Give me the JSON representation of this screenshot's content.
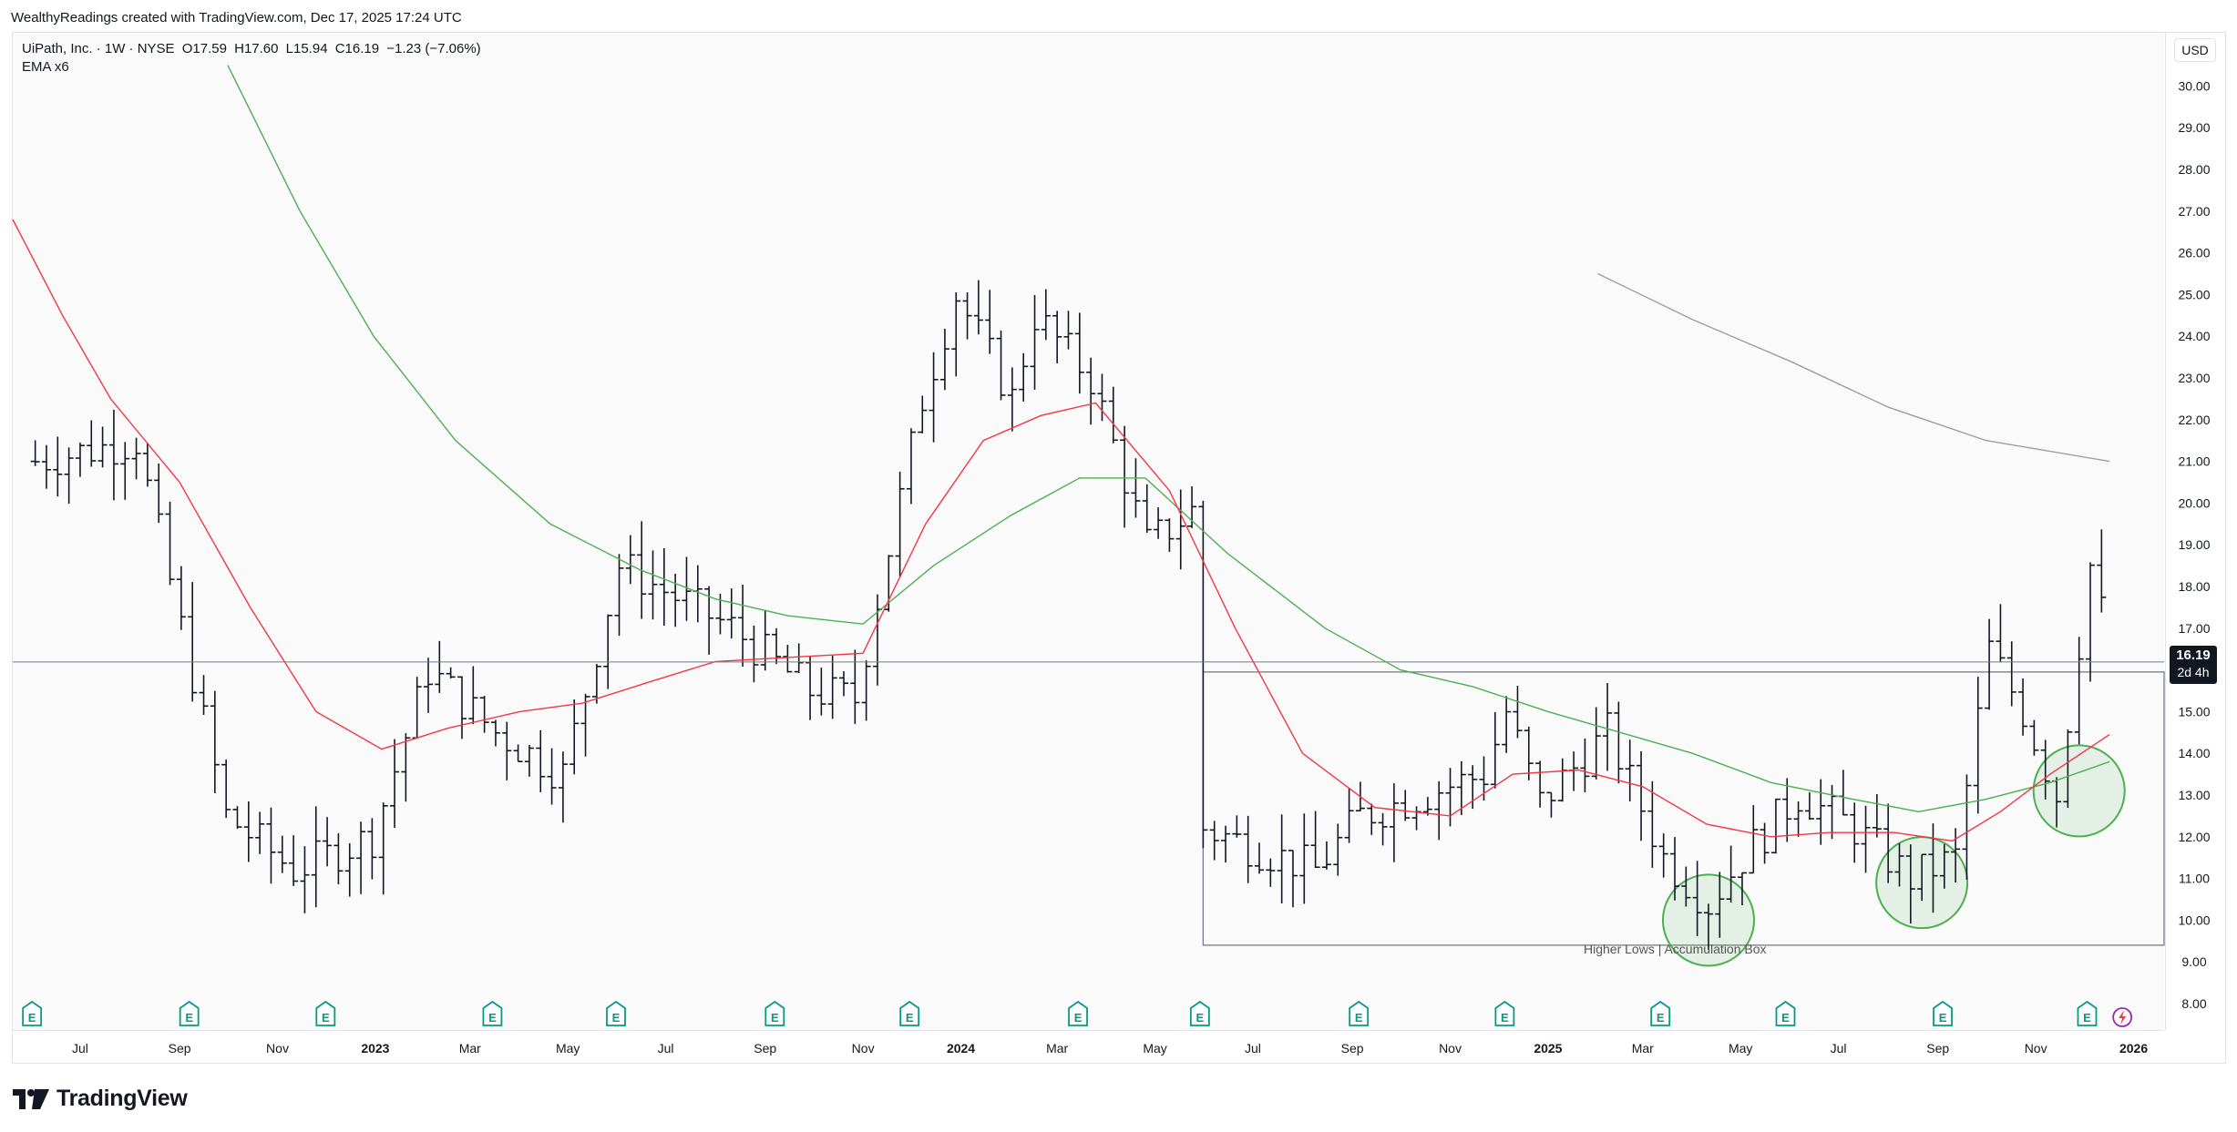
{
  "header": {
    "credit": "WealthyReadings created with TradingView.com, Dec 17, 2025 17:24 UTC"
  },
  "legend": {
    "symbol": "UiPath, Inc. · 1W · NYSE",
    "open": "O17.59",
    "high": "H17.60",
    "low": "L15.94",
    "close": "C16.19",
    "change": "−1.23 (−7.06%)",
    "indicator": "EMA x6"
  },
  "currency": "USD",
  "price_tag": {
    "price": "16.19",
    "countdown": "2d 4h"
  },
  "annotation": "Higher Lows | Accumulation Box",
  "brand": "TradingView",
  "colors": {
    "ema_fast": "#f23645",
    "ema_slow": "#4caf50",
    "ema_long": "#9e9e9e",
    "bars": "#131722",
    "circle": "#4caf50",
    "box": "#787b86",
    "earnings": "#089981"
  },
  "chart_data": {
    "type": "ohlc",
    "title": "UiPath, Inc. · 1W · NYSE",
    "y_ticks": [
      "8.00",
      "9.00",
      "10.00",
      "11.00",
      "12.00",
      "13.00",
      "14.00",
      "15.00",
      "16.00",
      "17.00",
      "18.00",
      "19.00",
      "20.00",
      "21.00",
      "22.00",
      "23.00",
      "24.00",
      "25.00",
      "26.00",
      "27.00",
      "28.00",
      "29.00",
      "30.00"
    ],
    "ylim": [
      7.5,
      30.5
    ],
    "x_ticks": [
      {
        "label": "Jul",
        "date": "2022-07-01",
        "bold": false
      },
      {
        "label": "Sep",
        "date": "2022-09-01",
        "bold": false
      },
      {
        "label": "Nov",
        "date": "2022-11-01",
        "bold": false
      },
      {
        "label": "2023",
        "date": "2023-01-01",
        "bold": true
      },
      {
        "label": "Mar",
        "date": "2023-03-01",
        "bold": false
      },
      {
        "label": "May",
        "date": "2023-05-01",
        "bold": false
      },
      {
        "label": "Jul",
        "date": "2023-07-01",
        "bold": false
      },
      {
        "label": "Sep",
        "date": "2023-09-01",
        "bold": false
      },
      {
        "label": "Nov",
        "date": "2023-11-01",
        "bold": false
      },
      {
        "label": "2024",
        "date": "2024-01-01",
        "bold": true
      },
      {
        "label": "Mar",
        "date": "2024-03-01",
        "bold": false
      },
      {
        "label": "May",
        "date": "2024-05-01",
        "bold": false
      },
      {
        "label": "Jul",
        "date": "2024-07-01",
        "bold": false
      },
      {
        "label": "Sep",
        "date": "2024-09-01",
        "bold": false
      },
      {
        "label": "Nov",
        "date": "2024-11-01",
        "bold": false
      },
      {
        "label": "2025",
        "date": "2025-01-01",
        "bold": true
      },
      {
        "label": "Mar",
        "date": "2025-03-01",
        "bold": false
      },
      {
        "label": "May",
        "date": "2025-05-01",
        "bold": false
      },
      {
        "label": "Jul",
        "date": "2025-07-01",
        "bold": false
      },
      {
        "label": "Sep",
        "date": "2025-09-01",
        "bold": false
      },
      {
        "label": "Nov",
        "date": "2025-11-01",
        "bold": false
      },
      {
        "label": "2026",
        "date": "2026-01-01",
        "bold": true
      }
    ],
    "x_range": [
      "2022-05-20",
      "2026-01-20"
    ],
    "price_key_points": [
      {
        "date": "2022-06-03",
        "price": 21.0
      },
      {
        "date": "2022-08-05",
        "price": 21.5
      },
      {
        "date": "2022-09-30",
        "price": 12.5
      },
      {
        "date": "2022-11-11",
        "price": 11.2
      },
      {
        "date": "2022-12-30",
        "price": 12.0
      },
      {
        "date": "2023-02-03",
        "price": 16.0
      },
      {
        "date": "2023-03-17",
        "price": 14.5
      },
      {
        "date": "2023-04-28",
        "price": 13.5
      },
      {
        "date": "2023-06-02",
        "price": 18.5
      },
      {
        "date": "2023-08-11",
        "price": 17.0
      },
      {
        "date": "2023-09-29",
        "price": 15.5
      },
      {
        "date": "2023-10-27",
        "price": 15.3
      },
      {
        "date": "2023-12-08",
        "price": 22.5
      },
      {
        "date": "2023-12-29",
        "price": 25.0
      },
      {
        "date": "2024-02-02",
        "price": 22.5
      },
      {
        "date": "2024-02-16",
        "price": 24.5
      },
      {
        "date": "2024-03-22",
        "price": 23.0
      },
      {
        "date": "2024-04-26",
        "price": 19.0
      },
      {
        "date": "2024-05-24",
        "price": 19.8
      },
      {
        "date": "2024-05-31",
        "price": 12.2
      },
      {
        "date": "2024-08-09",
        "price": 11.2
      },
      {
        "date": "2024-09-06",
        "price": 12.5
      },
      {
        "date": "2024-11-22",
        "price": 13.5
      },
      {
        "date": "2024-12-06",
        "price": 15.0
      },
      {
        "date": "2024-12-27",
        "price": 12.8
      },
      {
        "date": "2025-02-07",
        "price": 14.5
      },
      {
        "date": "2025-03-14",
        "price": 11.5
      },
      {
        "date": "2025-04-11",
        "price": 10.4
      },
      {
        "date": "2025-05-02",
        "price": 11.5
      },
      {
        "date": "2025-06-06",
        "price": 13.0
      },
      {
        "date": "2025-07-11",
        "price": 12.2
      },
      {
        "date": "2025-08-15",
        "price": 11.0
      },
      {
        "date": "2025-09-12",
        "price": 11.5
      },
      {
        "date": "2025-10-03",
        "price": 16.5
      },
      {
        "date": "2025-10-24",
        "price": 15.0
      },
      {
        "date": "2025-11-14",
        "price": 13.0
      },
      {
        "date": "2025-12-05",
        "price": 18.5
      },
      {
        "date": "2025-12-12",
        "price": 17.4
      },
      {
        "date": "2025-12-17",
        "price": 16.19
      }
    ],
    "ema_red": [
      {
        "date": "2022-05-20",
        "price": 26.8
      },
      {
        "date": "2022-06-20",
        "price": 24.5
      },
      {
        "date": "2022-07-20",
        "price": 22.5
      },
      {
        "date": "2022-09-01",
        "price": 20.5
      },
      {
        "date": "2022-10-15",
        "price": 17.5
      },
      {
        "date": "2022-11-25",
        "price": 15.0
      },
      {
        "date": "2023-01-05",
        "price": 14.1
      },
      {
        "date": "2023-02-15",
        "price": 14.6
      },
      {
        "date": "2023-04-01",
        "price": 15.0
      },
      {
        "date": "2023-05-10",
        "price": 15.2
      },
      {
        "date": "2023-06-20",
        "price": 15.7
      },
      {
        "date": "2023-08-01",
        "price": 16.2
      },
      {
        "date": "2023-09-15",
        "price": 16.3
      },
      {
        "date": "2023-11-01",
        "price": 16.4
      },
      {
        "date": "2023-12-10",
        "price": 19.5
      },
      {
        "date": "2024-01-15",
        "price": 21.5
      },
      {
        "date": "2024-02-20",
        "price": 22.1
      },
      {
        "date": "2024-03-25",
        "price": 22.4
      },
      {
        "date": "2024-05-10",
        "price": 20.3
      },
      {
        "date": "2024-06-20",
        "price": 17.0
      },
      {
        "date": "2024-08-01",
        "price": 14.0
      },
      {
        "date": "2024-09-15",
        "price": 12.7
      },
      {
        "date": "2024-11-01",
        "price": 12.5
      },
      {
        "date": "2024-12-10",
        "price": 13.5
      },
      {
        "date": "2025-01-20",
        "price": 13.6
      },
      {
        "date": "2025-03-01",
        "price": 13.2
      },
      {
        "date": "2025-04-10",
        "price": 12.3
      },
      {
        "date": "2025-05-20",
        "price": 12.0
      },
      {
        "date": "2025-06-25",
        "price": 12.1
      },
      {
        "date": "2025-08-05",
        "price": 12.1
      },
      {
        "date": "2025-09-10",
        "price": 11.9
      },
      {
        "date": "2025-10-10",
        "price": 12.6
      },
      {
        "date": "2025-11-10",
        "price": 13.5
      },
      {
        "date": "2025-12-17",
        "price": 14.45
      }
    ],
    "ema_green": [
      {
        "date": "2022-10-01",
        "price": 30.5
      },
      {
        "date": "2022-11-15",
        "price": 27.0
      },
      {
        "date": "2022-12-31",
        "price": 24.0
      },
      {
        "date": "2023-02-20",
        "price": 21.5
      },
      {
        "date": "2023-04-20",
        "price": 19.5
      },
      {
        "date": "2023-06-15",
        "price": 18.4
      },
      {
        "date": "2023-08-01",
        "price": 17.7
      },
      {
        "date": "2023-09-15",
        "price": 17.3
      },
      {
        "date": "2023-11-01",
        "price": 17.1
      },
      {
        "date": "2023-12-15",
        "price": 18.5
      },
      {
        "date": "2024-02-01",
        "price": 19.7
      },
      {
        "date": "2024-03-15",
        "price": 20.6
      },
      {
        "date": "2024-04-25",
        "price": 20.6
      },
      {
        "date": "2024-06-15",
        "price": 18.8
      },
      {
        "date": "2024-08-15",
        "price": 17.0
      },
      {
        "date": "2024-10-01",
        "price": 16.0
      },
      {
        "date": "2024-11-15",
        "price": 15.6
      },
      {
        "date": "2025-01-01",
        "price": 15.0
      },
      {
        "date": "2025-02-15",
        "price": 14.5
      },
      {
        "date": "2025-04-01",
        "price": 14.0
      },
      {
        "date": "2025-05-20",
        "price": 13.3
      },
      {
        "date": "2025-07-10",
        "price": 12.9
      },
      {
        "date": "2025-08-20",
        "price": 12.6
      },
      {
        "date": "2025-10-01",
        "price": 12.9
      },
      {
        "date": "2025-11-10",
        "price": 13.3
      },
      {
        "date": "2025-12-17",
        "price": 13.8
      }
    ],
    "ema_gray": [
      {
        "date": "2025-02-01",
        "price": 25.5
      },
      {
        "date": "2025-04-01",
        "price": 24.4
      },
      {
        "date": "2025-06-01",
        "price": 23.4
      },
      {
        "date": "2025-08-01",
        "price": 22.3
      },
      {
        "date": "2025-10-01",
        "price": 21.5
      },
      {
        "date": "2025-12-17",
        "price": 21.0
      }
    ],
    "box": {
      "start": "2024-05-31",
      "end": "2026-01-20",
      "top": 15.95,
      "bottom": 9.4
    },
    "circles": [
      {
        "date": "2025-04-11",
        "price": 10.0
      },
      {
        "date": "2025-08-22",
        "price": 10.9
      },
      {
        "date": "2025-11-28",
        "price": 13.1
      }
    ],
    "earnings": [
      "2022-06-01",
      "2022-09-07",
      "2022-12-01",
      "2023-03-15",
      "2023-05-31",
      "2023-09-07",
      "2023-11-30",
      "2024-03-14",
      "2024-05-29",
      "2024-09-05",
      "2024-12-05",
      "2025-03-12",
      "2025-05-29",
      "2025-09-04",
      "2025-12-03"
    ],
    "last_price": 16.19
  }
}
